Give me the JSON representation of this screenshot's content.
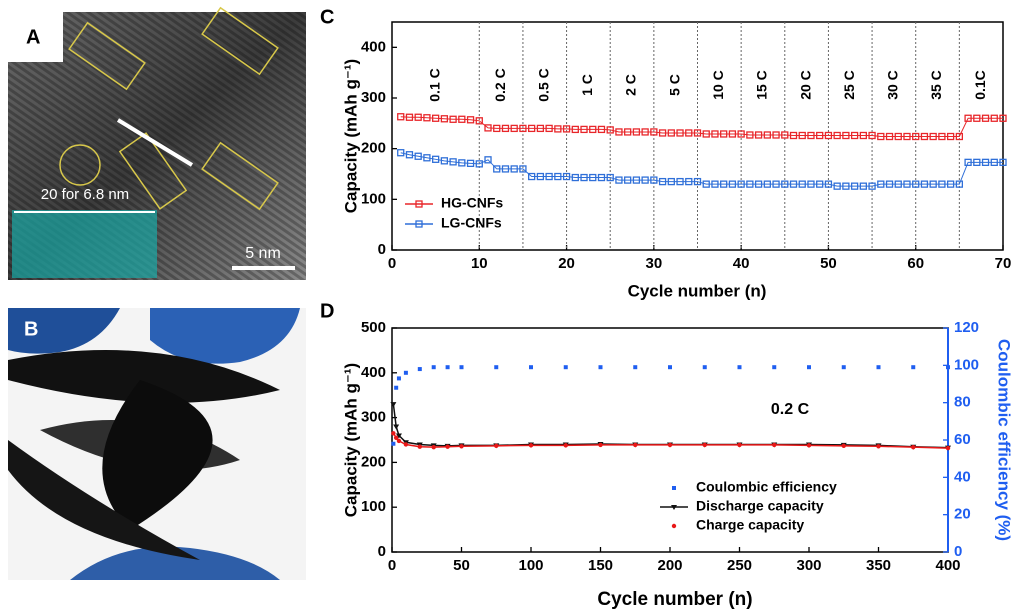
{
  "panels": {
    "A": {
      "label": "A",
      "scale_text": "20 for 6.8 nm",
      "scale_bar": "5 nm"
    },
    "B": {
      "label": "B"
    },
    "C": {
      "label": "C"
    },
    "D": {
      "label": "D"
    }
  },
  "chart_data": [
    {
      "type": "line",
      "xlabel": "Cycle number (n)",
      "ylabel": "Capacity (mAh g⁻¹)",
      "x": [
        1,
        2,
        3,
        4,
        5,
        6,
        7,
        8,
        9,
        10,
        11,
        12,
        13,
        14,
        15,
        16,
        17,
        18,
        19,
        20,
        21,
        22,
        23,
        24,
        25,
        26,
        27,
        28,
        29,
        30,
        31,
        32,
        33,
        34,
        35,
        36,
        37,
        38,
        39,
        40,
        41,
        42,
        43,
        44,
        45,
        46,
        47,
        48,
        49,
        50,
        51,
        52,
        53,
        54,
        55,
        56,
        57,
        58,
        59,
        60,
        61,
        62,
        63,
        64,
        65,
        66,
        67,
        68,
        69,
        70
      ],
      "series": [
        {
          "name": "HG-CNFs",
          "color": "#e8262a",
          "values": [
            263,
            262,
            262,
            261,
            260,
            259,
            258,
            258,
            257,
            255,
            241,
            240,
            240,
            240,
            240,
            240,
            240,
            240,
            239,
            239,
            238,
            238,
            238,
            238,
            237,
            233,
            233,
            233,
            233,
            233,
            231,
            231,
            231,
            231,
            231,
            229,
            229,
            229,
            229,
            229,
            227,
            227,
            227,
            227,
            227,
            226,
            226,
            226,
            226,
            226,
            226,
            226,
            226,
            226,
            226,
            224,
            224,
            224,
            224,
            224,
            224,
            224,
            224,
            224,
            224,
            260,
            260,
            260,
            260,
            260
          ]
        },
        {
          "name": "LG-CNFs",
          "color": "#2f6fd8",
          "values": [
            192,
            188,
            185,
            182,
            179,
            176,
            174,
            172,
            171,
            170,
            178,
            160,
            160,
            160,
            160,
            145,
            145,
            145,
            145,
            145,
            143,
            143,
            143,
            143,
            143,
            138,
            138,
            138,
            138,
            138,
            135,
            135,
            135,
            135,
            135,
            130,
            130,
            130,
            130,
            130,
            130,
            130,
            130,
            130,
            130,
            130,
            130,
            130,
            130,
            130,
            126,
            126,
            126,
            126,
            126,
            130,
            130,
            130,
            130,
            130,
            130,
            130,
            130,
            130,
            130,
            173,
            173,
            173,
            173,
            173
          ]
        }
      ],
      "xlim": [
        0,
        70
      ],
      "xticks": [
        0,
        10,
        20,
        30,
        40,
        50,
        60,
        70
      ],
      "ylim": [
        0,
        450
      ],
      "yticks": [
        0,
        100,
        200,
        300,
        400
      ],
      "dividers": [
        10,
        15,
        20,
        25,
        30,
        35,
        40,
        45,
        50,
        55,
        60,
        65
      ],
      "annotations": [
        "0.1 C",
        "0.2 C",
        "0.5 C",
        "1 C",
        "2 C",
        "5 C",
        "10 C",
        "15 C",
        "20 C",
        "25 C",
        "30 C",
        "35 C",
        "0.1C"
      ],
      "legend": "lower left"
    },
    {
      "type": "line",
      "xlabel": "Cycle number (n)",
      "ylabel": "Capacity (mAh g⁻¹)",
      "y2label": "Coulombic efficiency (%)",
      "x": [
        1,
        3,
        5,
        10,
        20,
        30,
        40,
        50,
        75,
        100,
        125,
        150,
        175,
        200,
        225,
        250,
        275,
        300,
        325,
        350,
        375,
        400
      ],
      "series": [
        {
          "name": "Coulombic efficiency",
          "color": "#1f5ef0",
          "axis": "y2",
          "values": [
            58,
            88,
            93,
            96,
            98,
            99,
            99,
            99,
            99,
            99,
            99,
            99,
            99,
            99,
            99,
            99,
            99,
            99,
            99,
            99,
            99,
            99
          ]
        },
        {
          "name": "Discharge capacity",
          "color": "#111111",
          "values": [
            330,
            280,
            260,
            245,
            240,
            238,
            237,
            238,
            238,
            240,
            240,
            241,
            240,
            240,
            240,
            240,
            240,
            240,
            239,
            238,
            235,
            233
          ]
        },
        {
          "name": "Charge capacity",
          "color": "#e81818",
          "values": [
            265,
            255,
            248,
            240,
            235,
            234,
            235,
            236,
            237,
            238,
            238,
            239,
            239,
            239,
            239,
            239,
            239,
            238,
            237,
            236,
            234,
            232
          ]
        }
      ],
      "xlim": [
        0,
        400
      ],
      "xticks": [
        0,
        50,
        100,
        150,
        200,
        250,
        300,
        350,
        400
      ],
      "ylim": [
        0,
        500
      ],
      "yticks": [
        0,
        100,
        200,
        300,
        400,
        500
      ],
      "y2lim": [
        0,
        120
      ],
      "y2ticks": [
        0,
        20,
        40,
        60,
        80,
        100,
        120
      ],
      "annotations": [
        "0.2 C"
      ],
      "legend": "lower center"
    }
  ]
}
